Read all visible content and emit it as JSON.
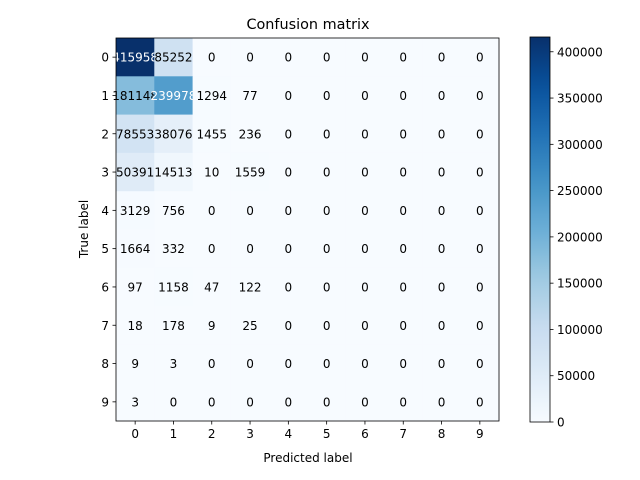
{
  "chart_data": {
    "type": "heatmap",
    "title": "Confusion matrix",
    "xlabel": "Predicted label",
    "ylabel": "True label",
    "x_ticks": [
      "0",
      "1",
      "2",
      "3",
      "4",
      "5",
      "6",
      "7",
      "8",
      "9"
    ],
    "y_ticks": [
      "0",
      "1",
      "2",
      "3",
      "4",
      "5",
      "6",
      "7",
      "8",
      "9"
    ],
    "matrix": [
      [
        415958,
        85252,
        0,
        0,
        0,
        0,
        0,
        0,
        0,
        0
      ],
      [
        181148,
        239978,
        1294,
        77,
        0,
        0,
        0,
        0,
        0,
        0
      ],
      [
        78553,
        38076,
        1455,
        236,
        0,
        0,
        0,
        0,
        0,
        0
      ],
      [
        50391,
        14513,
        10,
        1559,
        0,
        0,
        0,
        0,
        0,
        0
      ],
      [
        3129,
        756,
        0,
        0,
        0,
        0,
        0,
        0,
        0,
        0
      ],
      [
        1664,
        332,
        0,
        0,
        0,
        0,
        0,
        0,
        0,
        0
      ],
      [
        97,
        1158,
        47,
        122,
        0,
        0,
        0,
        0,
        0,
        0
      ],
      [
        18,
        178,
        9,
        25,
        0,
        0,
        0,
        0,
        0,
        0
      ],
      [
        9,
        3,
        0,
        0,
        0,
        0,
        0,
        0,
        0,
        0
      ],
      [
        3,
        0,
        0,
        0,
        0,
        0,
        0,
        0,
        0,
        0
      ]
    ],
    "colormap": "Blues",
    "colorbar": {
      "min": 0,
      "max": 415958,
      "ticks": [
        0,
        50000,
        100000,
        150000,
        200000,
        250000,
        300000,
        350000,
        400000
      ]
    },
    "grid": false
  }
}
